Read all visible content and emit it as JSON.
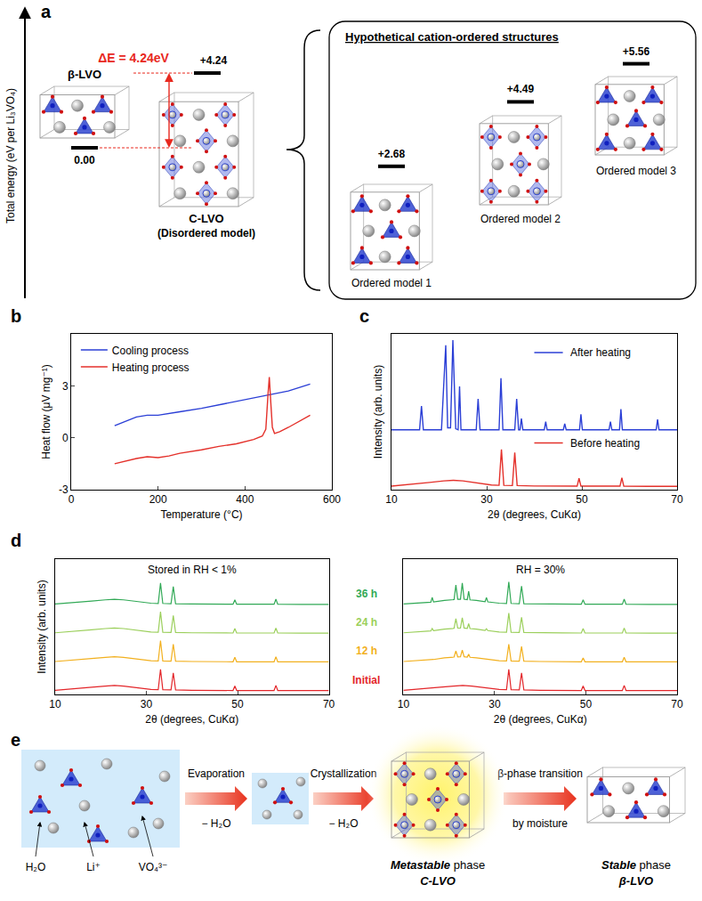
{
  "panel_a": {
    "letter": "a",
    "axis_label": "Total energy (eV per Li₃VO₄)",
    "delta_E": {
      "value": 4.24,
      "label": "ΔE = 4.24eV"
    },
    "structures": [
      {
        "name": "β-LVO",
        "energy": {
          "value": 0,
          "label": "0.00"
        }
      },
      {
        "name": "C-LVO",
        "subname": "(Disordered model)",
        "energy": {
          "value": 4.24,
          "label": "+4.24"
        }
      }
    ],
    "ordered_box": {
      "title": "Hypothetical cation-ordered structures",
      "structures": [
        {
          "name": "Ordered model 1",
          "energy": {
            "value": 2.68,
            "label": "+2.68"
          }
        },
        {
          "name": "Ordered model 2",
          "energy": {
            "value": 4.49,
            "label": "+4.49"
          }
        },
        {
          "name": "Ordered model 3",
          "energy": {
            "value": 5.56,
            "label": "+5.56"
          }
        }
      ]
    }
  },
  "chart_data": [
    {
      "letter": "b",
      "type": "line",
      "x_label": "Temperature (°C)",
      "y_label": "Heat flow (μV mg⁻¹)",
      "xlim": [
        0,
        600
      ],
      "xticks": [
        0,
        200,
        400,
        600
      ],
      "ylim": [
        -3,
        6
      ],
      "yticks": [
        -3,
        0,
        3
      ],
      "grid": false,
      "legend": "top left",
      "series": [
        {
          "name": "Cooling process",
          "color": "#2b3fd6",
          "x": [
            100,
            120,
            150,
            175,
            200,
            250,
            300,
            350,
            400,
            450,
            500,
            550
          ],
          "values": [
            0.7,
            0.9,
            1.2,
            1.3,
            1.3,
            1.5,
            1.7,
            1.95,
            2.2,
            2.45,
            2.7,
            3.1
          ]
        },
        {
          "name": "Heating process",
          "color": "#e4312b",
          "x": [
            100,
            125,
            150,
            175,
            200,
            225,
            250,
            300,
            340,
            380,
            420,
            440,
            448,
            453,
            456,
            459,
            463,
            468,
            480,
            500,
            525,
            550
          ],
          "values": [
            -1.5,
            -1.35,
            -1.2,
            -1.1,
            -1.15,
            -1.05,
            -0.9,
            -0.7,
            -0.5,
            -0.35,
            -0.1,
            0.1,
            0.5,
            2.5,
            3.5,
            2.2,
            0.6,
            0.25,
            0.35,
            0.6,
            0.95,
            1.3
          ]
        }
      ]
    },
    {
      "letter": "c",
      "type": "line",
      "x_label": "2θ (degrees, CuKα)",
      "y_label": "Intensity (arb. units)",
      "xlim": [
        10,
        70
      ],
      "xticks": [
        10,
        30,
        50,
        70
      ],
      "ylim": [
        -0.3,
        14.8
      ],
      "grid": false,
      "tick_labels": "x",
      "series": [
        {
          "name": "Before heating",
          "color": "#e4312b",
          "x": [
            10,
            14,
            18,
            21,
            23,
            25,
            28,
            31,
            32.6,
            33.1,
            33.6,
            35.4,
            35.9,
            36.4,
            40,
            45,
            49.0,
            49.4,
            49.8,
            55,
            58.0,
            58.4,
            58.8,
            64,
            70
          ],
          "values": [
            0.05,
            0.2,
            0.4,
            0.55,
            0.6,
            0.55,
            0.35,
            0.15,
            0.12,
            3.6,
            0.12,
            0.1,
            3.3,
            0.1,
            0.06,
            0.05,
            0.04,
            0.8,
            0.04,
            0.04,
            0.04,
            0.85,
            0.04,
            0.03,
            0.03
          ]
        },
        {
          "name": "After heating",
          "color": "#2b3fd6",
          "x": [
            10,
            15.9,
            16.3,
            16.7,
            20.5,
            21.4,
            21.8,
            22.4,
            22.9,
            23.5,
            24.0,
            24.3,
            24.6,
            27.8,
            28.2,
            28.6,
            32.6,
            33.0,
            33.4,
            35.9,
            36.3,
            36.7,
            37.0,
            37.3,
            37.6,
            42.1,
            42.4,
            42.7,
            46.1,
            46.4,
            46.7,
            49.5,
            49.8,
            50.1,
            55.7,
            56.0,
            56.3,
            57.9,
            58.2,
            58.5,
            65.6,
            65.9,
            66.2,
            70
          ],
          "values": [
            5.5,
            5.5,
            7.8,
            5.5,
            5.5,
            13.7,
            5.7,
            5.7,
            14.2,
            5.6,
            5.5,
            9.7,
            5.5,
            5.5,
            8.5,
            5.5,
            5.5,
            10.5,
            5.5,
            5.5,
            8.5,
            5.5,
            5.5,
            6.6,
            5.5,
            5.5,
            6.3,
            5.5,
            5.5,
            6.1,
            5.5,
            5.5,
            7.0,
            5.5,
            5.5,
            6.3,
            5.5,
            5.5,
            7.5,
            5.5,
            5.5,
            6.5,
            5.5,
            5.5
          ]
        }
      ]
    },
    {
      "letter": "d",
      "type": "line",
      "x_label": "2θ (degrees, CuKα)",
      "y_label": "Intensity (arb. units)",
      "xlim": [
        10,
        70
      ],
      "xticks": [
        10,
        30,
        50,
        70
      ],
      "ylim": [
        -0.3,
        11
      ],
      "grid": false,
      "tick_labels": "x",
      "panels": [
        {
          "title": "Stored in RH < 1%",
          "series": [
            {
              "name": "Initial",
              "color": "#e3262a",
              "x": [
                10,
                14,
                18,
                21,
                23,
                25,
                28,
                31,
                32.6,
                33.1,
                33.6,
                35.4,
                35.9,
                36.4,
                40,
                45,
                49.0,
                49.4,
                49.8,
                55,
                58.0,
                58.4,
                58.8,
                64,
                70
              ],
              "values": [
                0.05,
                0.15,
                0.3,
                0.4,
                0.45,
                0.4,
                0.25,
                0.12,
                0.1,
                1.8,
                0.1,
                0.08,
                1.5,
                0.08,
                0.05,
                0.04,
                0.03,
                0.4,
                0.03,
                0.03,
                0.03,
                0.45,
                0.03,
                0.02,
                0.02
              ]
            },
            {
              "name": "12 h",
              "color": "#f2b01e",
              "x": [
                10,
                14,
                18,
                21,
                23,
                25,
                28,
                31,
                32.6,
                33.1,
                33.6,
                35.4,
                35.9,
                36.4,
                40,
                45,
                49.0,
                49.4,
                49.8,
                55,
                58.0,
                58.4,
                58.8,
                64,
                70
              ],
              "values": [
                2.45,
                2.55,
                2.7,
                2.8,
                2.85,
                2.8,
                2.65,
                2.52,
                2.5,
                4.2,
                2.5,
                2.48,
                3.9,
                2.48,
                2.45,
                2.44,
                2.43,
                2.8,
                2.43,
                2.43,
                2.43,
                2.85,
                2.43,
                2.42,
                2.42
              ]
            },
            {
              "name": "24 h",
              "color": "#9bcf5b",
              "x": [
                10,
                14,
                18,
                21,
                23,
                25,
                28,
                31,
                32.6,
                33.1,
                33.6,
                35.4,
                35.9,
                36.4,
                40,
                45,
                49.0,
                49.4,
                49.8,
                55,
                58.0,
                58.4,
                58.8,
                64,
                70
              ],
              "values": [
                4.85,
                4.95,
                5.1,
                5.2,
                5.25,
                5.2,
                5.05,
                4.92,
                4.9,
                6.6,
                4.9,
                4.88,
                6.3,
                4.88,
                4.85,
                4.84,
                4.83,
                5.2,
                4.83,
                4.83,
                4.83,
                5.25,
                4.83,
                4.82,
                4.82
              ]
            },
            {
              "name": "36 h",
              "color": "#31a956",
              "x": [
                10,
                14,
                18,
                21,
                23,
                25,
                28,
                31,
                32.6,
                33.1,
                33.6,
                35.4,
                35.9,
                36.4,
                40,
                45,
                49.0,
                49.4,
                49.8,
                55,
                58.0,
                58.4,
                58.8,
                64,
                70
              ],
              "values": [
                7.25,
                7.35,
                7.5,
                7.6,
                7.65,
                7.6,
                7.45,
                7.32,
                7.3,
                9.0,
                7.3,
                7.28,
                8.7,
                7.28,
                7.25,
                7.24,
                7.23,
                7.6,
                7.23,
                7.23,
                7.23,
                7.65,
                7.23,
                7.22,
                7.22
              ]
            }
          ]
        },
        {
          "title": "RH = 30%",
          "series": [
            {
              "name": "Initial",
              "color": "#e3262a",
              "x": [
                10,
                14,
                18,
                21,
                23,
                25,
                28,
                31,
                32.6,
                33.1,
                33.6,
                35.4,
                35.9,
                36.4,
                40,
                45,
                49.0,
                49.4,
                49.8,
                55,
                58.0,
                58.4,
                58.8,
                64,
                70
              ],
              "values": [
                0.05,
                0.15,
                0.3,
                0.4,
                0.45,
                0.4,
                0.25,
                0.12,
                0.1,
                1.8,
                0.1,
                0.08,
                1.5,
                0.08,
                0.05,
                0.04,
                0.03,
                0.4,
                0.03,
                0.03,
                0.03,
                0.45,
                0.03,
                0.02,
                0.02
              ]
            },
            {
              "name": "12 h",
              "color": "#f2b01e",
              "x": [
                10,
                14,
                16.0,
                16.3,
                16.6,
                19,
                21.1,
                21.5,
                21.9,
                22.5,
                22.9,
                23.3,
                24.0,
                24.3,
                24.6,
                26,
                27.9,
                28.2,
                28.5,
                31,
                32.6,
                33.1,
                33.6,
                35.4,
                35.9,
                36.4,
                40,
                45,
                49.0,
                49.4,
                49.8,
                55,
                58.0,
                58.4,
                58.8,
                64,
                70
              ],
              "values": [
                2.45,
                2.55,
                2.6,
                2.6,
                2.62,
                2.75,
                2.82,
                3.33,
                2.84,
                2.85,
                3.4,
                2.85,
                2.82,
                3.06,
                2.8,
                2.75,
                2.65,
                2.64,
                2.63,
                2.52,
                2.5,
                3.9,
                2.5,
                2.48,
                3.7,
                2.48,
                2.45,
                2.44,
                2.43,
                2.75,
                2.43,
                2.43,
                2.43,
                2.8,
                2.43,
                2.42,
                2.42
              ]
            },
            {
              "name": "24 h",
              "color": "#9bcf5b",
              "x": [
                10,
                14,
                16.0,
                16.3,
                16.6,
                19,
                21.1,
                21.5,
                21.9,
                22.5,
                22.9,
                23.3,
                24.0,
                24.3,
                24.6,
                26,
                27.9,
                28.2,
                28.5,
                31,
                32.6,
                33.1,
                33.6,
                35.4,
                35.9,
                36.4,
                40,
                45,
                49.0,
                49.4,
                49.8,
                55,
                58.0,
                58.4,
                58.8,
                64,
                70
              ],
              "values": [
                4.85,
                4.95,
                5.0,
                5.2,
                5.02,
                5.15,
                5.22,
                6.03,
                5.24,
                5.25,
                6.1,
                5.25,
                5.22,
                5.61,
                5.2,
                5.15,
                5.05,
                5.19,
                5.03,
                4.92,
                4.9,
                6.5,
                4.9,
                4.88,
                6.15,
                4.88,
                4.85,
                4.84,
                4.83,
                5.2,
                4.83,
                4.83,
                4.83,
                5.25,
                4.83,
                4.82,
                4.82
              ]
            },
            {
              "name": "36 h",
              "color": "#31a956",
              "x": [
                10,
                14,
                16.0,
                16.3,
                16.6,
                19,
                21.1,
                21.5,
                21.9,
                22.5,
                22.9,
                23.3,
                24.0,
                24.3,
                24.6,
                26,
                27.9,
                28.2,
                28.5,
                31,
                32.6,
                33.1,
                33.6,
                35.4,
                35.9,
                36.4,
                40,
                45,
                49.0,
                49.4,
                49.8,
                55,
                58.0,
                58.4,
                58.8,
                64,
                70
              ],
              "values": [
                7.25,
                7.35,
                7.4,
                7.8,
                7.42,
                7.55,
                7.62,
                8.83,
                7.64,
                7.65,
                9.0,
                7.65,
                7.62,
                8.31,
                7.6,
                7.55,
                7.45,
                7.79,
                7.43,
                7.32,
                7.3,
                9.1,
                7.3,
                7.28,
                8.75,
                7.28,
                7.25,
                7.24,
                7.23,
                7.6,
                7.23,
                7.23,
                7.23,
                7.65,
                7.23,
                7.22,
                7.22
              ]
            }
          ]
        }
      ]
    }
  ],
  "panel_e": {
    "letter": "e",
    "species": [
      "H₂O",
      "Li⁺",
      "VO₄³⁻"
    ],
    "steps": [
      {
        "label": "Evaporation",
        "sub": "− H₂O"
      },
      {
        "label": "Crystallization",
        "sub": "− H₂O"
      },
      {
        "label": "β-phase transition",
        "sub": "by moisture"
      }
    ],
    "metastable": {
      "emph": "Metastable",
      "rest": "phase",
      "name": "C-LVO"
    },
    "stable": {
      "emph": "Stable",
      "rest": "phase",
      "name": "β-LVO"
    }
  }
}
